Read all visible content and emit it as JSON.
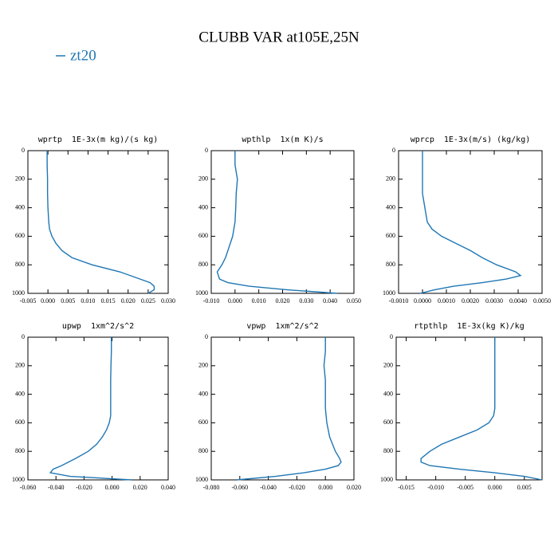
{
  "title": "CLUBB VAR at105E,25N",
  "chart_data": [
    {
      "type": "line",
      "title": "wprtp  1E-3x(m kg)/(s kg)",
      "y": [
        0,
        100,
        200,
        300,
        400,
        500,
        550,
        600,
        650,
        700,
        750,
        800,
        850,
        900,
        925,
        950,
        975,
        1000
      ],
      "series": [
        {
          "name": "zt20",
          "color": "#1f77b4",
          "values": [
            -0.0002,
            -0.0002,
            -0.0001,
            -0.0001,
            0.0,
            0.0002,
            0.0004,
            0.001,
            0.002,
            0.0035,
            0.006,
            0.011,
            0.018,
            0.023,
            0.0255,
            0.0265,
            0.0265,
            0.025
          ]
        }
      ],
      "xlim": [
        -0.005,
        0.03
      ],
      "xticks": [
        {
          "value": -0.005,
          "label": "-0.005"
        },
        {
          "value": 0,
          "label": "0.000"
        },
        {
          "value": 0.005,
          "label": "0.005"
        },
        {
          "value": 0.01,
          "label": "0.010"
        },
        {
          "value": 0.015,
          "label": "0.015"
        },
        {
          "value": 0.02,
          "label": "0.020"
        },
        {
          "value": 0.025,
          "label": "0.025"
        },
        {
          "value": 0.03,
          "label": "0.030"
        }
      ],
      "ylim": [
        1000,
        0
      ],
      "yticks": [
        0,
        200,
        400,
        600,
        800,
        1000
      ]
    },
    {
      "type": "line",
      "title": "wpthlp  1x(m K)/s",
      "y": [
        0,
        100,
        200,
        300,
        400,
        500,
        550,
        600,
        650,
        700,
        750,
        800,
        850,
        900,
        925,
        950,
        975,
        1000
      ],
      "series": [
        {
          "name": "zt20",
          "color": "#1f77b4",
          "values": [
            0.0,
            0.0,
            0.001,
            0.0005,
            0.0003,
            0.0,
            -0.0005,
            -0.001,
            -0.002,
            -0.003,
            -0.004,
            -0.0055,
            -0.0075,
            -0.0065,
            -0.003,
            0.006,
            0.022,
            0.043
          ]
        }
      ],
      "xlim": [
        -0.01,
        0.05
      ],
      "xticks": [
        {
          "value": -0.01,
          "label": "-0.010"
        },
        {
          "value": 0,
          "label": "0.000"
        },
        {
          "value": 0.01,
          "label": "0.010"
        },
        {
          "value": 0.02,
          "label": "0.020"
        },
        {
          "value": 0.03,
          "label": "0.030"
        },
        {
          "value": 0.04,
          "label": "0.040"
        },
        {
          "value": 0.05,
          "label": "0.050"
        }
      ],
      "ylim": [
        1000,
        0
      ],
      "yticks": [
        0,
        200,
        400,
        600,
        800,
        1000
      ]
    },
    {
      "type": "line",
      "title": "wprcp  1E-3x(m/s) (kg/kg)",
      "y": [
        0,
        100,
        200,
        300,
        400,
        500,
        550,
        600,
        650,
        700,
        750,
        800,
        850,
        875,
        900,
        925,
        950,
        975,
        1000
      ],
      "series": [
        {
          "name": "zt20",
          "color": "#1f77b4",
          "values": [
            0.0,
            0.0,
            0.0,
            0.0,
            0.0001,
            0.0002,
            0.0004,
            0.0008,
            0.0014,
            0.002,
            0.0025,
            0.0031,
            0.0039,
            0.0041,
            0.0035,
            0.0025,
            0.0013,
            0.0005,
            -0.0001
          ]
        }
      ],
      "xlim": [
        -0.001,
        0.005
      ],
      "xticks": [
        {
          "value": -0.001,
          "label": "-0.0010"
        },
        {
          "value": 0,
          "label": "0.0000"
        },
        {
          "value": 0.001,
          "label": "0.0010"
        },
        {
          "value": 0.002,
          "label": "0.0020"
        },
        {
          "value": 0.003,
          "label": "0.0030"
        },
        {
          "value": 0.004,
          "label": "0.0040"
        },
        {
          "value": 0.005,
          "label": "0.0050"
        }
      ],
      "ylim": [
        1000,
        0
      ],
      "yticks": [
        0,
        200,
        400,
        600,
        800,
        1000
      ]
    },
    {
      "type": "line",
      "title": "upwp  1xm^2/s^2",
      "y": [
        0,
        100,
        200,
        300,
        400,
        500,
        550,
        600,
        650,
        700,
        750,
        800,
        850,
        900,
        925,
        950,
        975,
        1000
      ],
      "series": [
        {
          "name": "zt20",
          "color": "#1f77b4",
          "values": [
            -0.0005,
            -0.0005,
            -0.0008,
            -0.001,
            -0.001,
            -0.001,
            -0.001,
            -0.002,
            -0.004,
            -0.007,
            -0.011,
            -0.017,
            -0.026,
            -0.036,
            -0.042,
            -0.044,
            -0.03,
            0.014
          ]
        }
      ],
      "xlim": [
        -0.06,
        0.04
      ],
      "xticks": [
        {
          "value": -0.06,
          "label": "-0.060"
        },
        {
          "value": -0.04,
          "label": "-0.040"
        },
        {
          "value": -0.02,
          "label": "-0.020"
        },
        {
          "value": 0,
          "label": "0.000"
        },
        {
          "value": 0.02,
          "label": "0.020"
        },
        {
          "value": 0.04,
          "label": "0.040"
        }
      ],
      "ylim": [
        1000,
        0
      ],
      "yticks": [
        0,
        200,
        400,
        600,
        800,
        1000
      ]
    },
    {
      "type": "line",
      "title": "vpwp  1xm^2/s^2",
      "y": [
        0,
        100,
        200,
        300,
        400,
        500,
        550,
        600,
        650,
        700,
        750,
        800,
        850,
        875,
        900,
        925,
        950,
        975,
        1000
      ],
      "series": [
        {
          "name": "zt20",
          "color": "#1f77b4",
          "values": [
            0.0,
            0.0,
            -0.001,
            0.0,
            0.0,
            0.0,
            0.0005,
            0.001,
            0.002,
            0.003,
            0.005,
            0.007,
            0.01,
            0.011,
            0.009,
            0.0,
            -0.015,
            -0.035,
            -0.062
          ]
        }
      ],
      "xlim": [
        -0.08,
        0.02
      ],
      "xticks": [
        {
          "value": -0.08,
          "label": "-0.080"
        },
        {
          "value": -0.06,
          "label": "-0.060"
        },
        {
          "value": -0.04,
          "label": "-0.040"
        },
        {
          "value": -0.02,
          "label": "-0.020"
        },
        {
          "value": 0,
          "label": "0.000"
        },
        {
          "value": 0.02,
          "label": "0.020"
        }
      ],
      "ylim": [
        1000,
        0
      ],
      "yticks": [
        0,
        200,
        400,
        600,
        800,
        1000
      ]
    },
    {
      "type": "line",
      "title": "rtpthlp  1E-3x(kg K)/kg",
      "y": [
        0,
        100,
        200,
        300,
        400,
        500,
        550,
        600,
        650,
        700,
        750,
        800,
        850,
        875,
        900,
        925,
        950,
        975,
        1000
      ],
      "series": [
        {
          "name": "zt20",
          "color": "#1f77b4",
          "values": [
            0.0,
            0.0,
            0.0,
            0.0,
            0.0,
            0.0,
            -0.0002,
            -0.001,
            -0.003,
            -0.006,
            -0.009,
            -0.011,
            -0.0125,
            -0.0125,
            -0.011,
            -0.006,
            0.0,
            0.005,
            0.008
          ]
        }
      ],
      "xlim": [
        -0.0167,
        0.008
      ],
      "xticks": [
        {
          "value": -0.015,
          "label": "-0.015"
        },
        {
          "value": -0.01,
          "label": "-0.010"
        },
        {
          "value": -0.005,
          "label": "-0.005"
        },
        {
          "value": 0,
          "label": "0.000"
        },
        {
          "value": 0.005,
          "label": "0.005"
        }
      ],
      "ylim": [
        1000,
        0
      ],
      "yticks": [
        0,
        200,
        400,
        600,
        800,
        1000
      ]
    }
  ]
}
